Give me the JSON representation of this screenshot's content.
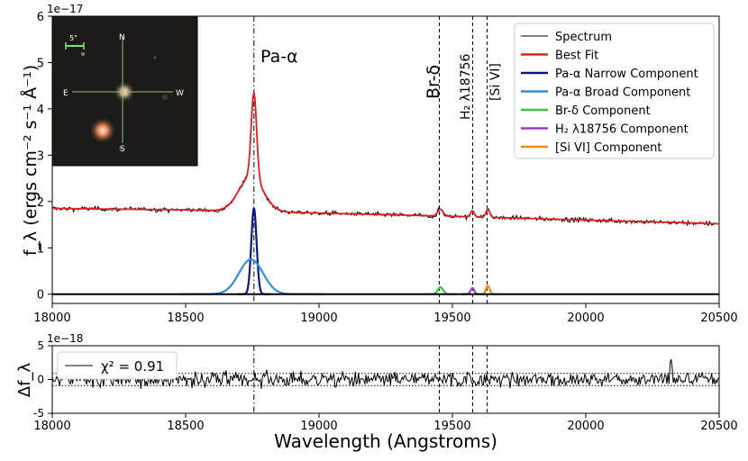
{
  "chart_data": [
    {
      "type": "line",
      "panel": "spectrum",
      "ylabel": "f_λ (ergs cm⁻² s⁻¹ Å⁻¹)",
      "yscale_label": "1e−17",
      "xlim": [
        18000,
        20500
      ],
      "ylim": [
        -0.2,
        6
      ],
      "xticks": [
        18000,
        18500,
        19000,
        19500,
        20000,
        20500
      ],
      "yticks": [
        0,
        1,
        2,
        3,
        4,
        5,
        6
      ],
      "continuum": {
        "x": [
          18000,
          18500,
          19000,
          19500,
          20000,
          20500
        ],
        "y": [
          1.85,
          1.82,
          1.75,
          1.68,
          1.6,
          1.52
        ]
      },
      "lines": [
        {
          "label": "Pa-α",
          "wavelength": 18756,
          "style": "dashdot"
        },
        {
          "label": "Br-δ",
          "wavelength": 19451,
          "style": "dashed"
        },
        {
          "label": "H₂ λ18756",
          "wavelength": 19576,
          "style": "dashed"
        },
        {
          "label": "[Si VI]",
          "wavelength": 19630,
          "style": "dashed"
        }
      ],
      "components": [
        {
          "name": "Pa-α Narrow Component",
          "center": 18756,
          "amplitude": 1.85,
          "sigma": 10,
          "color": "#0a1a7a"
        },
        {
          "name": "Pa-α Broad Component",
          "center": 18745,
          "amplitude": 0.75,
          "sigma": 45,
          "color": "#2e8fe0"
        },
        {
          "name": "Br-δ Component",
          "center": 19455,
          "amplitude": 0.15,
          "sigma": 10,
          "color": "#3cc43c"
        },
        {
          "name": "H₂ λ18756 Component",
          "center": 19575,
          "amplitude": 0.13,
          "sigma": 7,
          "color": "#9b3fc6"
        },
        {
          "name": "[Si VI] Component",
          "center": 19633,
          "amplitude": 0.18,
          "sigma": 7,
          "color": "#f08c10"
        }
      ],
      "legend": [
        {
          "label": "Spectrum",
          "color": "#000000"
        },
        {
          "label": "Best Fit",
          "color": "#e02020"
        },
        {
          "label": "Pa-α Narrow Component",
          "color": "#0a1a7a"
        },
        {
          "label": "Pa-α Broad Component",
          "color": "#2e8fe0"
        },
        {
          "label": "Br-δ Component",
          "color": "#3cc43c"
        },
        {
          "label": "H₂ λ18756 Component",
          "color": "#9b3fc6"
        },
        {
          "label": "[Si VI] Component",
          "color": "#f08c10"
        }
      ],
      "legend_position": "top-right",
      "inset": {
        "scale_label": "5\"",
        "compass": {
          "n": "N",
          "s": "S",
          "e": "E",
          "w": "W"
        }
      }
    },
    {
      "type": "line",
      "panel": "residuals",
      "ylabel": "Δf_λ",
      "yscale_label": "1e−18",
      "xlabel": "Wavelength (Angstroms)",
      "xlim": [
        18000,
        20500
      ],
      "ylim": [
        -5,
        5
      ],
      "xticks": [
        18000,
        18500,
        19000,
        19500,
        20000,
        20500
      ],
      "yticks": [
        -5,
        0,
        5
      ],
      "reference_lines": [
        -0.9,
        0.9
      ],
      "legend": [
        {
          "label": "χ² =  0.91",
          "color": "#000000"
        }
      ],
      "legend_position": "top-left"
    }
  ]
}
